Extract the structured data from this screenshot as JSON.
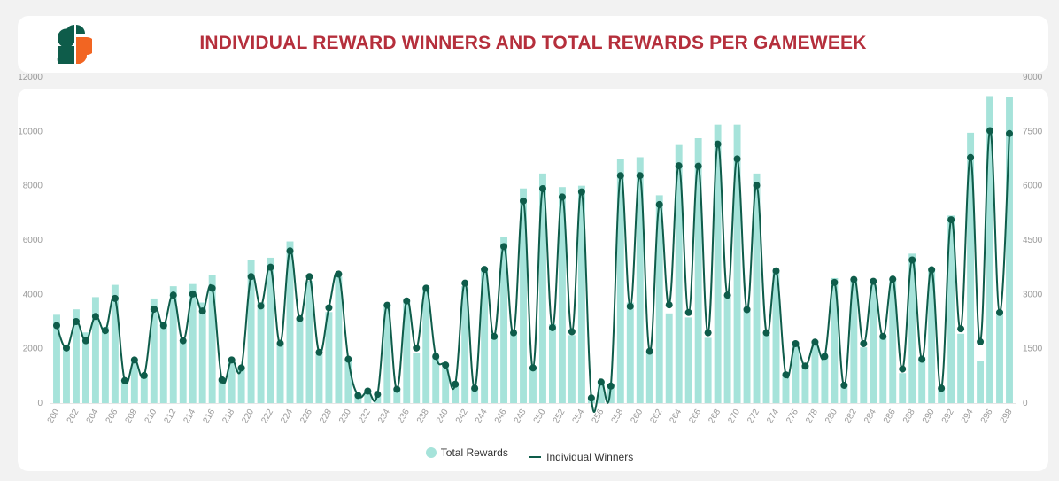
{
  "header": {
    "title": "INDIVIDUAL REWARD WINNERS AND TOTAL REWARDS PER GAMEWEEK"
  },
  "colors": {
    "bar": "#a6e3da",
    "line": "#0e5c4a",
    "title": "#b52f3c",
    "logo_green": "#0e5c4a",
    "logo_orange": "#f26522"
  },
  "legend": {
    "bars_label": "Total Rewards",
    "line_label": "Individual Winners"
  },
  "chart_data": {
    "type": "bar+line",
    "title": "INDIVIDUAL REWARD WINNERS AND TOTAL REWARDS PER GAMEWEEK",
    "x": [
      200,
      201,
      202,
      203,
      204,
      205,
      206,
      207,
      208,
      209,
      210,
      211,
      212,
      213,
      214,
      215,
      216,
      217,
      218,
      219,
      220,
      221,
      222,
      223,
      224,
      225,
      226,
      227,
      228,
      229,
      230,
      231,
      232,
      233,
      234,
      235,
      236,
      237,
      238,
      239,
      240,
      241,
      242,
      243,
      244,
      245,
      246,
      247,
      248,
      249,
      250,
      251,
      252,
      253,
      254,
      255,
      256,
      257,
      258,
      259,
      260,
      261,
      262,
      263,
      264,
      265,
      266,
      267,
      268,
      269,
      270,
      271,
      272,
      273,
      274,
      275,
      276,
      277,
      278,
      279,
      280,
      281,
      282,
      283,
      284,
      285,
      286,
      287,
      288,
      289,
      290,
      291,
      292,
      293,
      294,
      295,
      296,
      297,
      298
    ],
    "x_tick_labels": [
      "200",
      "202",
      "204",
      "206",
      "208",
      "210",
      "212",
      "214",
      "216",
      "218",
      "220",
      "222",
      "224",
      "226",
      "228",
      "230",
      "232",
      "234",
      "236",
      "238",
      "240",
      "242",
      "244",
      "246",
      "248",
      "250",
      "252",
      "254",
      "256",
      "258",
      "260",
      "262",
      "264",
      "266",
      "268",
      "270",
      "272",
      "274",
      "276",
      "278",
      "280",
      "282",
      "284",
      "286",
      "288",
      "290",
      "292",
      "294",
      "296",
      "298"
    ],
    "series": [
      {
        "name": "Total Rewards",
        "type": "bar",
        "axis": "left",
        "values": [
          3250,
          2100,
          3450,
          2600,
          3900,
          2800,
          4350,
          850,
          1550,
          1050,
          3850,
          3000,
          4300,
          2250,
          4380,
          3700,
          4720,
          850,
          1550,
          1300,
          5250,
          3700,
          5350,
          2200,
          5950,
          3100,
          4500,
          1800,
          3350,
          4650,
          1600,
          300,
          450,
          350,
          3650,
          550,
          3750,
          1850,
          4200,
          1700,
          1450,
          700,
          4300,
          550,
          4950,
          2500,
          6100,
          2600,
          7900,
          1350,
          8450,
          2900,
          7950,
          2500,
          8000,
          200,
          800,
          650,
          9000,
          3700,
          9050,
          1900,
          7650,
          3300,
          9500,
          3150,
          9750,
          2400,
          10250,
          4000,
          10250,
          3500,
          8450,
          2600,
          4850,
          1100,
          2250,
          1350,
          2300,
          1700,
          4600,
          650,
          4520,
          2050,
          4350,
          2450,
          4600,
          1100,
          5500,
          1700,
          4950,
          550,
          6900,
          2550,
          9950,
          1550,
          11300,
          3400,
          11250
        ]
      },
      {
        "name": "Individual Winners",
        "type": "line",
        "axis": "right",
        "values": [
          2140,
          1520,
          2250,
          1720,
          2390,
          2000,
          2890,
          620,
          1190,
          760,
          2590,
          2140,
          2980,
          1720,
          3010,
          2540,
          3170,
          640,
          1190,
          970,
          3490,
          2680,
          3750,
          1650,
          4200,
          2330,
          3490,
          1400,
          2630,
          3560,
          1210,
          210,
          330,
          240,
          2700,
          380,
          2820,
          1520,
          3170,
          1290,
          1050,
          520,
          3310,
          410,
          3690,
          1840,
          4320,
          1940,
          5580,
          970,
          5920,
          2080,
          5690,
          1970,
          5830,
          140,
          580,
          470,
          6280,
          2670,
          6280,
          1430,
          5480,
          2710,
          6550,
          2500,
          6540,
          1940,
          7150,
          2980,
          6740,
          2580,
          6010,
          1940,
          3650,
          780,
          1640,
          1020,
          1680,
          1290,
          3330,
          490,
          3410,
          1640,
          3360,
          1840,
          3420,
          940,
          3950,
          1210,
          3680,
          410,
          5060,
          2050,
          6780,
          1690,
          7520,
          2500,
          7440
        ]
      }
    ],
    "left_axis": {
      "min": 0,
      "max": 12000,
      "ticks": [
        0,
        2000,
        4000,
        6000,
        8000,
        10000,
        12000
      ],
      "tick_labels": [
        "0",
        "2000",
        "4000",
        "6000",
        "8000",
        "10000",
        "12000"
      ]
    },
    "right_axis": {
      "min": 0,
      "max": 9000,
      "ticks": [
        0,
        1500,
        3000,
        4500,
        6000,
        7500,
        9000
      ],
      "tick_labels": [
        "0",
        "1500",
        "3000",
        "4500",
        "6000",
        "7500",
        "9000"
      ]
    },
    "grid": false,
    "legend_position": "bottom-center"
  }
}
